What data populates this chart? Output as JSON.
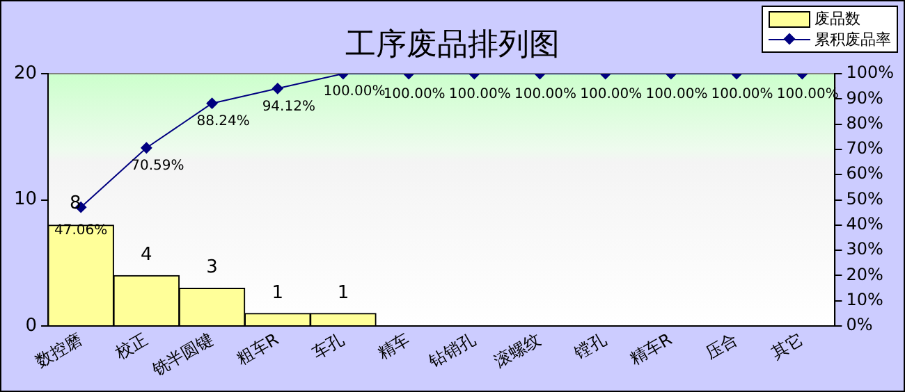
{
  "chart_data": {
    "type": "bar",
    "title": "工序废品排列图",
    "categories": [
      "数控磨",
      "校正",
      "铣半圆键",
      "粗车R",
      "车孔",
      "精车",
      "钻销孔",
      "滚螺纹",
      "镗孔",
      "精车R",
      "压合",
      "其它"
    ],
    "series": [
      {
        "name": "废品数",
        "color": "#ffff99",
        "values": [
          8,
          4,
          3,
          1,
          1,
          0,
          0,
          0,
          0,
          0,
          0,
          0
        ],
        "value_labels": [
          "8",
          "4",
          "3",
          "1",
          "1",
          null,
          null,
          null,
          null,
          null,
          null,
          null
        ]
      },
      {
        "name": "累积废品率",
        "type": "line",
        "axis": "y2",
        "color": "#000080",
        "values": [
          47.06,
          70.59,
          88.24,
          94.12,
          100,
          100,
          100,
          100,
          100,
          100,
          100,
          100
        ],
        "value_labels": [
          "47.06%",
          "70.59%",
          "88.24%",
          "94.12%",
          "100.00%",
          "100.00%",
          "100.00%",
          "100.00%",
          "100.00%",
          "100.00%",
          "100.00%",
          "100.00%"
        ]
      }
    ],
    "ylim": [
      0,
      20
    ],
    "yticks": [
      0,
      10,
      20
    ],
    "y2lim": [
      0,
      100
    ],
    "y2ticks": [
      {
        "value": 0,
        "label": "0%"
      },
      {
        "value": 10,
        "label": "10%"
      },
      {
        "value": 20,
        "label": "20%"
      },
      {
        "value": 30,
        "label": "30%"
      },
      {
        "value": 40,
        "label": "40%"
      },
      {
        "value": 50,
        "label": "50%"
      },
      {
        "value": 60,
        "label": "60%"
      },
      {
        "value": 70,
        "label": "70%"
      },
      {
        "value": 80,
        "label": "80%"
      },
      {
        "value": 90,
        "label": "90%"
      },
      {
        "value": 100,
        "label": "100%"
      }
    ],
    "grid": false,
    "legend": "top right",
    "marker": "diamond",
    "line_style": "solid"
  }
}
